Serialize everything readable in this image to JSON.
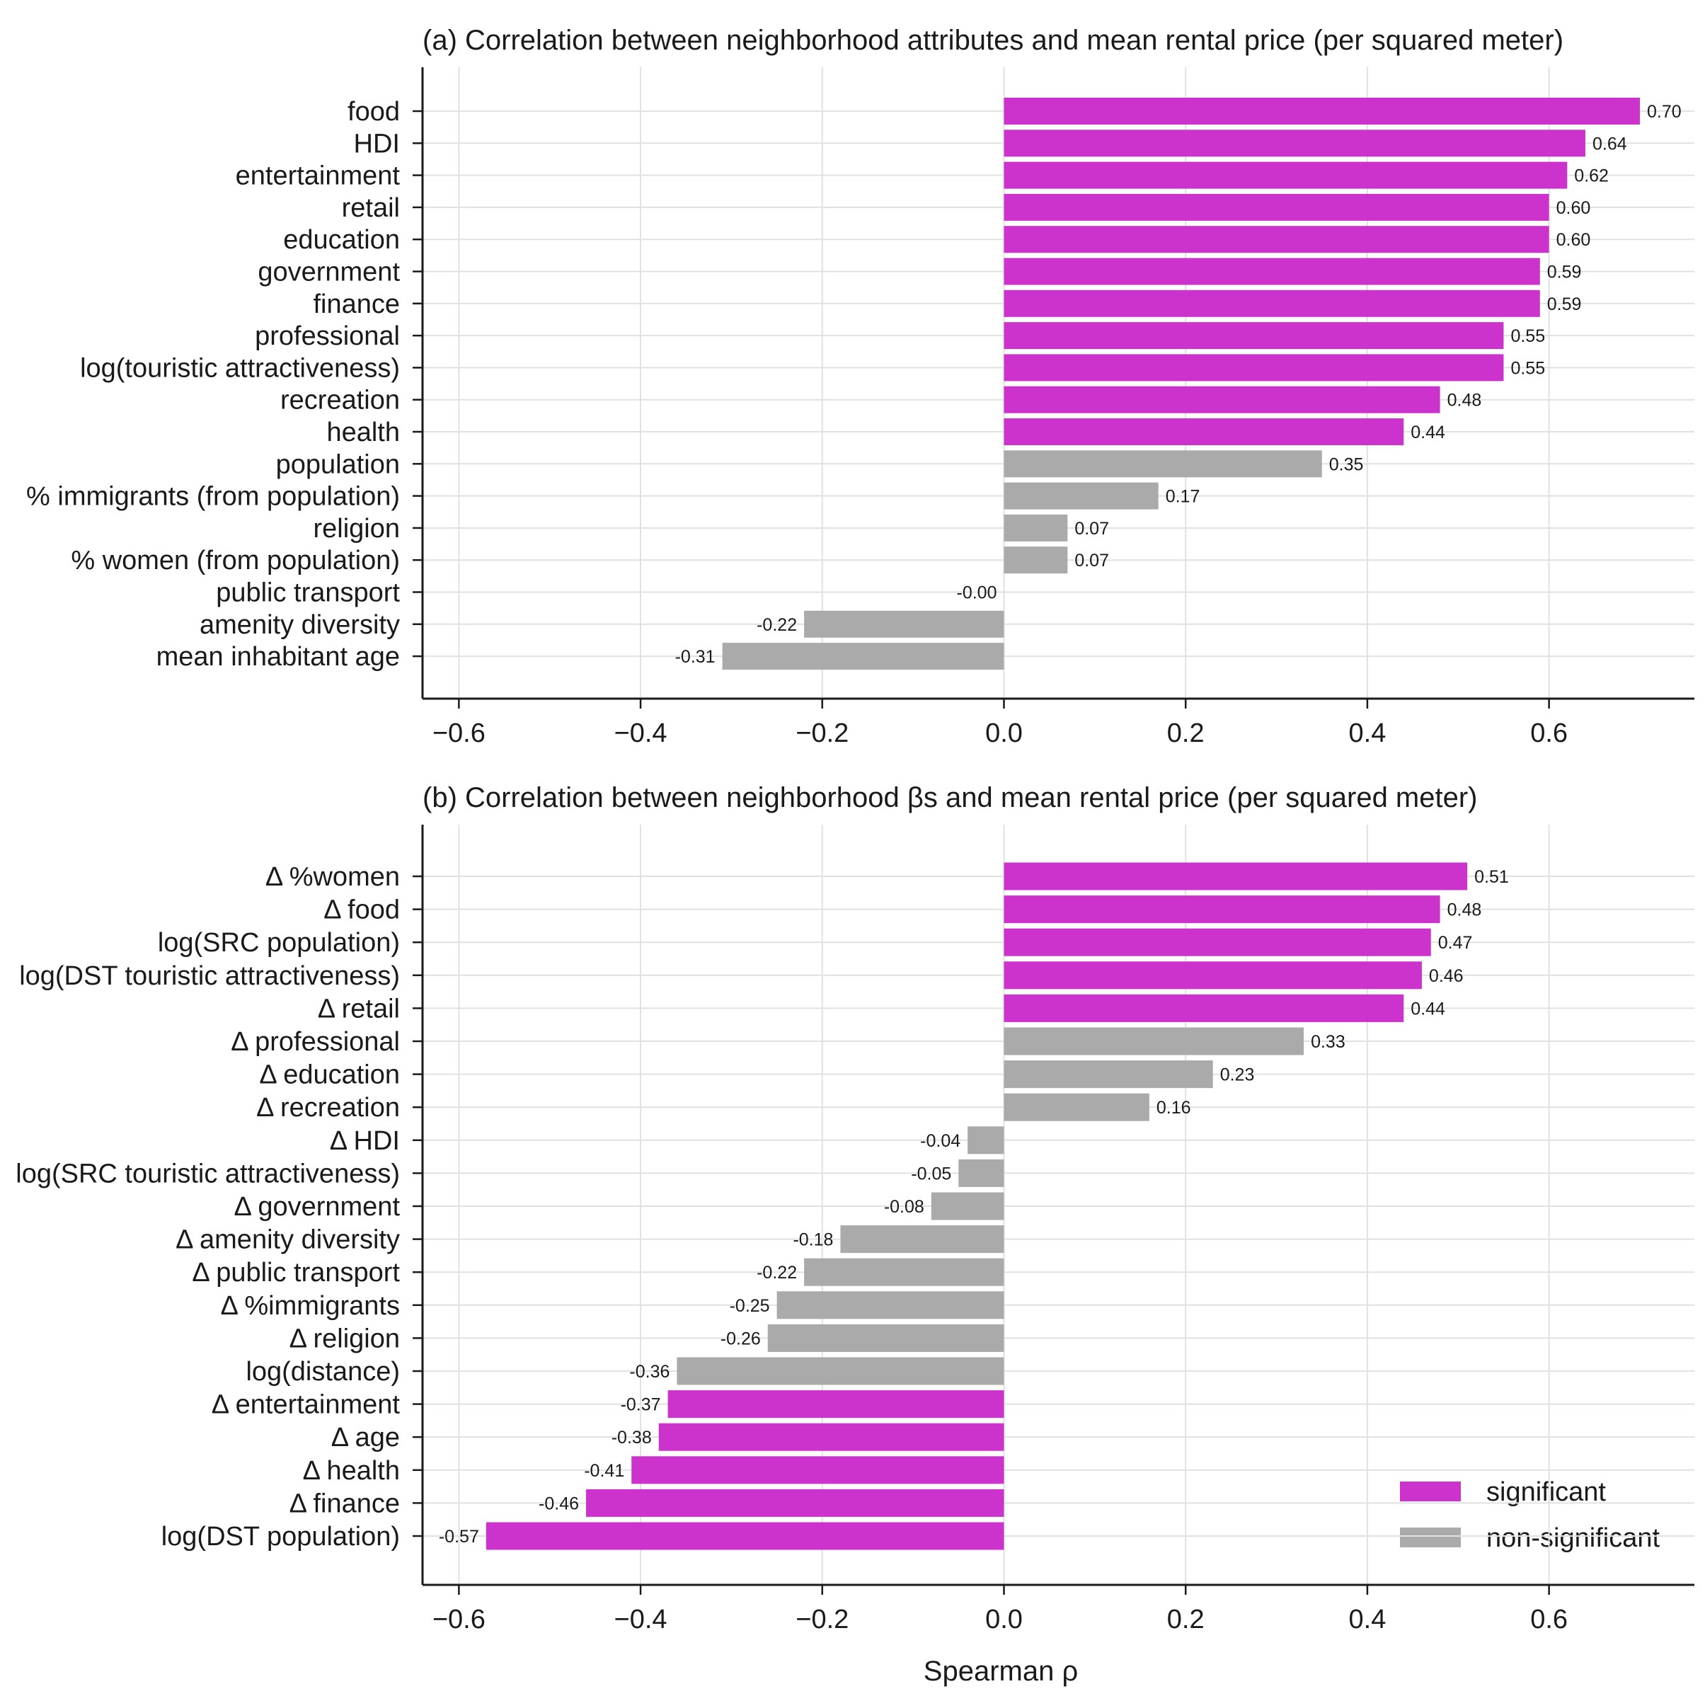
{
  "colors": {
    "significant": "#cc33cc",
    "non_significant": "#aaaaaa",
    "grid": "#e1e1e1",
    "axis": "#1a1a1a"
  },
  "chart_data": [
    {
      "type": "bar",
      "orientation": "horizontal",
      "title": "(a) Correlation between neighborhood attributes and mean rental price (per squared meter)",
      "xlabel": "",
      "xlim": [
        -0.64,
        0.76
      ],
      "xticks": [
        -0.6,
        -0.4,
        -0.2,
        0.0,
        0.2,
        0.4,
        0.6
      ],
      "xtick_labels": [
        "−0.6",
        "−0.4",
        "−0.2",
        "0.0",
        "0.2",
        "0.4",
        "0.6"
      ],
      "grid": true,
      "bars": [
        {
          "category": "food",
          "value": 0.7,
          "label": "0.70",
          "significant": true
        },
        {
          "category": "HDI",
          "value": 0.64,
          "label": "0.64",
          "significant": true
        },
        {
          "category": "entertainment",
          "value": 0.62,
          "label": "0.62",
          "significant": true
        },
        {
          "category": "retail",
          "value": 0.6,
          "label": "0.60",
          "significant": true
        },
        {
          "category": "education",
          "value": 0.6,
          "label": "0.60",
          "significant": true
        },
        {
          "category": "government",
          "value": 0.59,
          "label": "0.59",
          "significant": true
        },
        {
          "category": "finance",
          "value": 0.59,
          "label": "0.59",
          "significant": true
        },
        {
          "category": "professional",
          "value": 0.55,
          "label": "0.55",
          "significant": true
        },
        {
          "category": "log(touristic attractiveness)",
          "value": 0.55,
          "label": "0.55",
          "significant": true
        },
        {
          "category": "recreation",
          "value": 0.48,
          "label": "0.48",
          "significant": true
        },
        {
          "category": "health",
          "value": 0.44,
          "label": "0.44",
          "significant": true
        },
        {
          "category": "population",
          "value": 0.35,
          "label": "0.35",
          "significant": false
        },
        {
          "category": "% immigrants (from population)",
          "value": 0.17,
          "label": "0.17",
          "significant": false
        },
        {
          "category": "religion",
          "value": 0.07,
          "label": "0.07",
          "significant": false
        },
        {
          "category": "% women (from population)",
          "value": 0.07,
          "label": "0.07",
          "significant": false
        },
        {
          "category": "public transport",
          "value": -0.0,
          "label": "-0.00",
          "significant": false
        },
        {
          "category": "amenity diversity",
          "value": -0.22,
          "label": "-0.22",
          "significant": false
        },
        {
          "category": "mean inhabitant age",
          "value": -0.31,
          "label": "-0.31",
          "significant": false
        }
      ]
    },
    {
      "type": "bar",
      "orientation": "horizontal",
      "title": "(b) Correlation between neighborhood βs and mean rental price (per squared meter)",
      "xlabel": "Spearman ρ",
      "xlim": [
        -0.64,
        0.76
      ],
      "xticks": [
        -0.6,
        -0.4,
        -0.2,
        0.0,
        0.2,
        0.4,
        0.6
      ],
      "xtick_labels": [
        "−0.6",
        "−0.4",
        "−0.2",
        "0.0",
        "0.2",
        "0.4",
        "0.6"
      ],
      "grid": true,
      "legend": {
        "position": "bottom-right",
        "entries": [
          "significant",
          "non-significant"
        ]
      },
      "bars": [
        {
          "category": "Δ %women",
          "value": 0.51,
          "label": "0.51",
          "significant": true
        },
        {
          "category": "Δ food",
          "value": 0.48,
          "label": "0.48",
          "significant": true
        },
        {
          "category": "log(SRC population)",
          "value": 0.47,
          "label": "0.47",
          "significant": true
        },
        {
          "category": "log(DST touristic attractiveness)",
          "value": 0.46,
          "label": "0.46",
          "significant": true
        },
        {
          "category": "Δ retail",
          "value": 0.44,
          "label": "0.44",
          "significant": true
        },
        {
          "category": "Δ professional",
          "value": 0.33,
          "label": "0.33",
          "significant": false
        },
        {
          "category": "Δ education",
          "value": 0.23,
          "label": "0.23",
          "significant": false
        },
        {
          "category": "Δ recreation",
          "value": 0.16,
          "label": "0.16",
          "significant": false
        },
        {
          "category": "Δ HDI",
          "value": -0.04,
          "label": "-0.04",
          "significant": false
        },
        {
          "category": "log(SRC touristic attractiveness)",
          "value": -0.05,
          "label": "-0.05",
          "significant": false
        },
        {
          "category": "Δ government",
          "value": -0.08,
          "label": "-0.08",
          "significant": false
        },
        {
          "category": "Δ amenity diversity",
          "value": -0.18,
          "label": "-0.18",
          "significant": false
        },
        {
          "category": "Δ public transport",
          "value": -0.22,
          "label": "-0.22",
          "significant": false
        },
        {
          "category": "Δ %immigrants",
          "value": -0.25,
          "label": "-0.25",
          "significant": false
        },
        {
          "category": "Δ religion",
          "value": -0.26,
          "label": "-0.26",
          "significant": false
        },
        {
          "category": "log(distance)",
          "value": -0.36,
          "label": "-0.36",
          "significant": false
        },
        {
          "category": "Δ entertainment",
          "value": -0.37,
          "label": "-0.37",
          "significant": true
        },
        {
          "category": "Δ age",
          "value": -0.38,
          "label": "-0.38",
          "significant": true
        },
        {
          "category": "Δ health",
          "value": -0.41,
          "label": "-0.41",
          "significant": true
        },
        {
          "category": "Δ finance",
          "value": -0.46,
          "label": "-0.46",
          "significant": true
        },
        {
          "category": "log(DST population)",
          "value": -0.57,
          "label": "-0.57",
          "significant": true
        }
      ]
    }
  ]
}
